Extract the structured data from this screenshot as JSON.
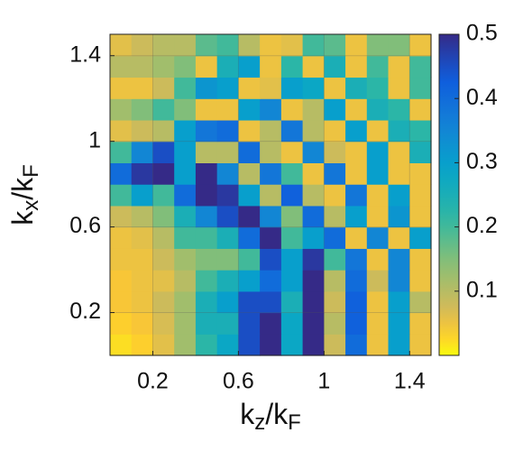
{
  "chart_data": {
    "type": "heatmap",
    "xlabel": "kz/kF",
    "ylabel": "kx/kF",
    "xlim": [
      0,
      1.5
    ],
    "ylim": [
      0,
      1.5
    ],
    "xticks": [
      0.2,
      0.6,
      1,
      1.4
    ],
    "yticks": [
      0.2,
      0.6,
      1,
      1.4
    ],
    "grid": true,
    "colormap": "parula",
    "reverse_colormap": true,
    "clim": [
      0,
      0.5
    ],
    "cticks": [
      0.1,
      0.2,
      0.3,
      0.4,
      0.5
    ],
    "x": [
      0.05,
      0.15,
      0.25,
      0.35,
      0.45,
      0.55,
      0.65,
      0.75,
      0.85,
      0.95,
      1.05,
      1.15,
      1.25,
      1.35,
      1.45
    ],
    "y": [
      0.05,
      0.15,
      0.25,
      0.35,
      0.45,
      0.55,
      0.65,
      0.75,
      0.85,
      0.95,
      1.05,
      1.15,
      1.25,
      1.35,
      1.45
    ],
    "z": [
      [
        0.02,
        0.03,
        0.06,
        0.12,
        0.22,
        0.28,
        0.45,
        0.5,
        0.28,
        0.5,
        0.08,
        0.4,
        0.05,
        0.3,
        0.05
      ],
      [
        0.03,
        0.04,
        0.07,
        0.12,
        0.25,
        0.25,
        0.45,
        0.5,
        0.28,
        0.5,
        0.1,
        0.42,
        0.05,
        0.3,
        0.05
      ],
      [
        0.04,
        0.05,
        0.08,
        0.12,
        0.25,
        0.3,
        0.45,
        0.45,
        0.25,
        0.5,
        0.08,
        0.42,
        0.05,
        0.3,
        0.1
      ],
      [
        0.04,
        0.05,
        0.06,
        0.1,
        0.2,
        0.25,
        0.3,
        0.4,
        0.3,
        0.5,
        0.1,
        0.4,
        0.08,
        0.35,
        0.05
      ],
      [
        0.05,
        0.05,
        0.08,
        0.12,
        0.15,
        0.15,
        0.2,
        0.45,
        0.3,
        0.48,
        0.2,
        0.38,
        0.05,
        0.35,
        0.05
      ],
      [
        0.05,
        0.06,
        0.1,
        0.2,
        0.2,
        0.25,
        0.4,
        0.5,
        0.2,
        0.3,
        0.4,
        0.05,
        0.35,
        0.05,
        0.3
      ],
      [
        0.08,
        0.1,
        0.15,
        0.25,
        0.35,
        0.45,
        0.5,
        0.35,
        0.15,
        0.4,
        0.1,
        0.3,
        0.05,
        0.32,
        0.05
      ],
      [
        0.2,
        0.3,
        0.2,
        0.4,
        0.5,
        0.48,
        0.3,
        0.1,
        0.42,
        0.1,
        0.05,
        0.38,
        0.05,
        0.3,
        0.05
      ],
      [
        0.4,
        0.48,
        0.5,
        0.3,
        0.5,
        0.35,
        0.1,
        0.38,
        0.2,
        0.05,
        0.38,
        0.05,
        0.3,
        0.05,
        0.05
      ],
      [
        0.2,
        0.35,
        0.45,
        0.3,
        0.1,
        0.1,
        0.4,
        0.1,
        0.05,
        0.35,
        0.08,
        0.05,
        0.3,
        0.05,
        0.25
      ],
      [
        0.06,
        0.08,
        0.1,
        0.3,
        0.38,
        0.4,
        0.05,
        0.1,
        0.38,
        0.1,
        0.05,
        0.3,
        0.05,
        0.25,
        0.22
      ],
      [
        0.12,
        0.15,
        0.2,
        0.15,
        0.05,
        0.05,
        0.3,
        0.35,
        0.05,
        0.1,
        0.3,
        0.05,
        0.25,
        0.22,
        0.05
      ],
      [
        0.05,
        0.05,
        0.08,
        0.2,
        0.32,
        0.3,
        0.05,
        0.06,
        0.3,
        0.28,
        0.05,
        0.25,
        0.22,
        0.05,
        0.2
      ],
      [
        0.1,
        0.1,
        0.12,
        0.15,
        0.05,
        0.25,
        0.3,
        0.05,
        0.22,
        0.05,
        0.25,
        0.05,
        0.2,
        0.05,
        0.2
      ],
      [
        0.06,
        0.08,
        0.1,
        0.1,
        0.18,
        0.2,
        0.1,
        0.05,
        0.06,
        0.2,
        0.18,
        0.05,
        0.15,
        0.15,
        0.05
      ]
    ]
  }
}
